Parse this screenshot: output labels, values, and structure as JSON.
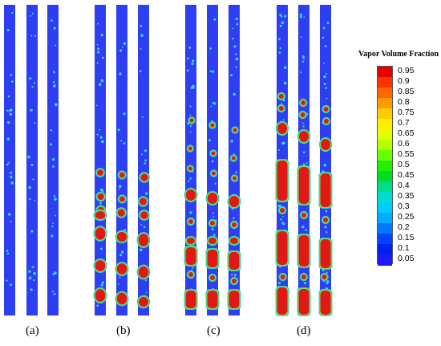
{
  "panel_labels": [
    "(a)",
    "(b)",
    "(c)",
    "(d)"
  ],
  "legend": {
    "title": "Vapor Volume Fraction",
    "ticks": [
      "0.95",
      "0.9",
      "0.85",
      "0.8",
      "0.75",
      "0.7",
      "0.65",
      "0.6",
      "0.55",
      "0.5",
      "0.45",
      "0.4",
      "0.35",
      "0.3",
      "0.25",
      "0.2",
      "0.15",
      "0.1",
      "0.05"
    ],
    "colors": [
      "#e60000",
      "#ff3300",
      "#ff6600",
      "#ff9900",
      "#ffcc00",
      "#ffee00",
      "#e6ff00",
      "#b3ff00",
      "#66ff00",
      "#22ee00",
      "#00dd22",
      "#00dd88",
      "#00ddcc",
      "#00ccff",
      "#00aaff",
      "#0077ff",
      "#0044ff",
      "#0022ee",
      "#1a1aff"
    ]
  },
  "colors": {
    "liquid": "#2e3ef2",
    "vapor": "#e01818",
    "interface_outer": "#25d4c0",
    "interface_mid": "#7fe23a",
    "bubble_small": "#3ad0d8"
  }
}
